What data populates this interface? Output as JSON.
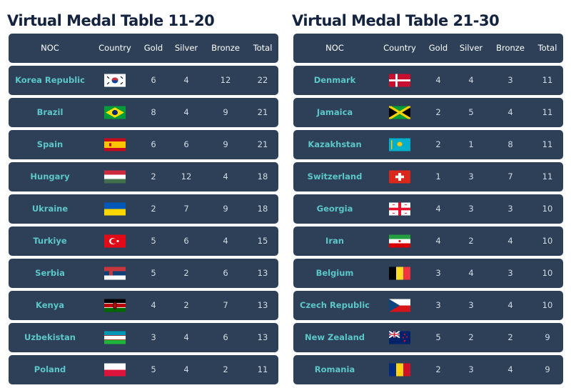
{
  "tables": [
    {
      "title": "Virtual Medal Table 11-20",
      "columns": [
        "NOC",
        "Country",
        "Gold",
        "Silver",
        "Bronze",
        "Total"
      ],
      "rows": [
        [
          "Korea Republic",
          6,
          4,
          12,
          22
        ],
        [
          "Brazil",
          8,
          4,
          9,
          21
        ],
        [
          "Spain",
          6,
          6,
          9,
          21
        ],
        [
          "Hungary",
          2,
          12,
          4,
          18
        ],
        [
          "Ukraine",
          2,
          7,
          9,
          18
        ],
        [
          "Turkiye",
          5,
          6,
          4,
          15
        ],
        [
          "Serbia",
          5,
          2,
          6,
          13
        ],
        [
          "Kenya",
          4,
          2,
          7,
          13
        ],
        [
          "Uzbekistan",
          3,
          4,
          6,
          13
        ],
        [
          "Poland",
          5,
          4,
          2,
          11
        ]
      ]
    },
    {
      "title": "Virtual Medal Table 21-30",
      "columns": [
        "NOC",
        "Country",
        "Gold",
        "Silver",
        "Bronze",
        "Total"
      ],
      "rows": [
        [
          "Denmark",
          4,
          4,
          3,
          11
        ],
        [
          "Jamaica",
          2,
          5,
          4,
          11
        ],
        [
          "Kazakhstan",
          2,
          1,
          8,
          11
        ],
        [
          "Switzerland",
          1,
          3,
          7,
          11
        ],
        [
          "Georgia",
          4,
          3,
          3,
          10
        ],
        [
          "Iran",
          4,
          2,
          4,
          10
        ],
        [
          "Belgium",
          3,
          4,
          3,
          10
        ],
        [
          "Czech Republic",
          3,
          3,
          4,
          10
        ],
        [
          "New Zealand",
          5,
          2,
          2,
          9
        ],
        [
          "Romania",
          2,
          3,
          4,
          9
        ]
      ]
    }
  ]
}
